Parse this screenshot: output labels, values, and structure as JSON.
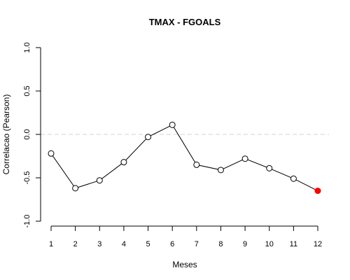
{
  "chart_data": {
    "type": "line",
    "title": "TMAX - FGOALS",
    "xlabel": "Meses",
    "ylabel": "Correlacao (Pearson)",
    "x": [
      1,
      2,
      3,
      4,
      5,
      6,
      7,
      8,
      9,
      10,
      11,
      12
    ],
    "values": [
      -0.22,
      -0.62,
      -0.53,
      -0.32,
      -0.03,
      0.11,
      -0.35,
      -0.41,
      -0.28,
      -0.39,
      -0.51,
      -0.65
    ],
    "ylim": [
      -1.0,
      1.0
    ],
    "xlim": [
      1,
      12
    ],
    "yticks": [
      "-1.0",
      "-0.5",
      "0.0",
      "0.5",
      "1.0"
    ],
    "xticks": [
      "1",
      "2",
      "3",
      "4",
      "5",
      "6",
      "7",
      "8",
      "9",
      "10",
      "11",
      "12"
    ],
    "reference_line": {
      "y": 0,
      "style": "dashed",
      "color": "#d3d3d3"
    },
    "highlight_point": {
      "x": 12,
      "color": "#ff0000"
    },
    "line_color": "#000000",
    "grid": false,
    "legend": "none"
  }
}
